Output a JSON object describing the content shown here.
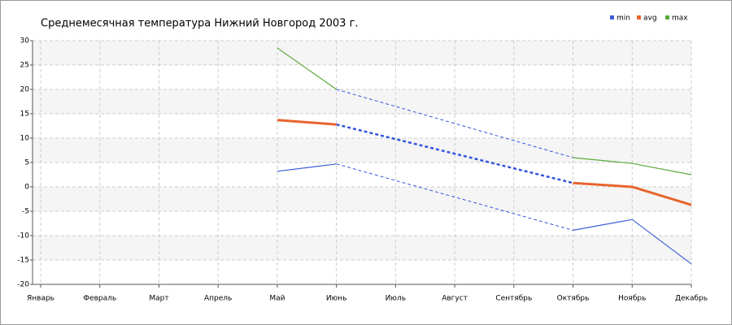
{
  "chart_data": {
    "type": "line",
    "title": "Среднемесячная температура Нижний Новгород  2003 г.",
    "categories": [
      "Январь",
      "Февраль",
      "Март",
      "Апрель",
      "Май",
      "Июнь",
      "Июль",
      "Август",
      "Сентябрь",
      "Октябрь",
      "Ноябрь",
      "Декабрь"
    ],
    "series": [
      {
        "name": "min",
        "color": "#3b5fd6",
        "values": [
          null,
          null,
          null,
          null,
          3.2,
          4.7,
          null,
          null,
          null,
          -8.9,
          -6.7,
          -15.8
        ]
      },
      {
        "name": "avg",
        "color": "#e8642c",
        "values": [
          null,
          null,
          null,
          null,
          13.7,
          12.8,
          null,
          null,
          null,
          0.8,
          0,
          -3.7
        ]
      },
      {
        "name": "max",
        "color": "#5aab3a",
        "values": [
          null,
          null,
          null,
          null,
          28.5,
          20,
          null,
          null,
          null,
          6,
          4.8,
          2.5
        ]
      }
    ],
    "ylim": [
      -20,
      30
    ],
    "yticks": [
      -20,
      -15,
      -10,
      -5,
      0,
      5,
      10,
      15,
      20,
      25,
      30
    ],
    "grid": true,
    "bridge_gaps": true,
    "gap_line_color": "#3355dd",
    "legend": "top-right"
  }
}
